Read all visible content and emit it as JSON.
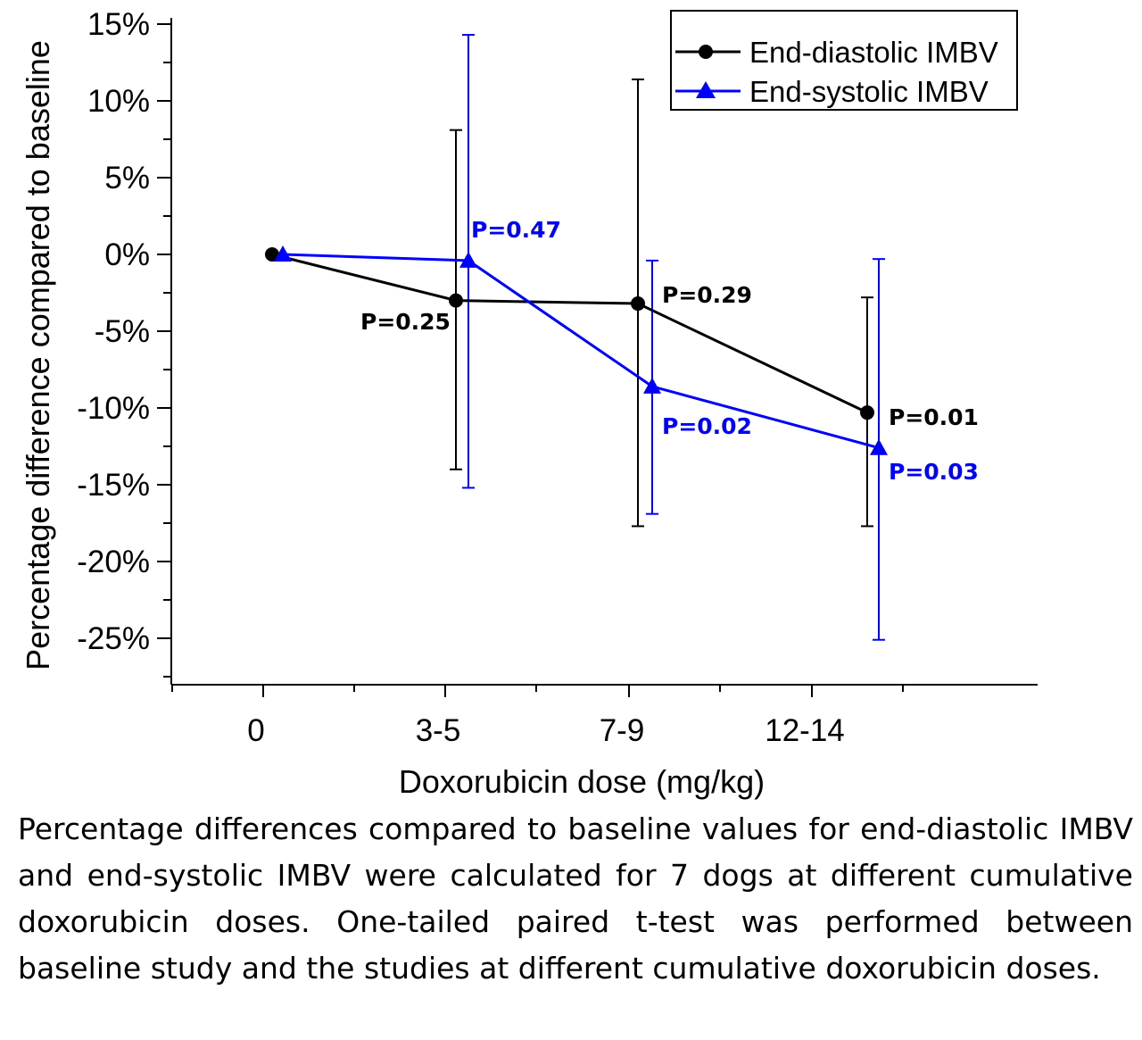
{
  "chart_data": {
    "type": "line",
    "title": "",
    "xlabel": "Doxorubicin dose (mg/kg)",
    "ylabel": "Percentage difference compared to baseline",
    "categories": [
      "0",
      "3-5",
      "7-9",
      "12-14"
    ],
    "ylim": [
      -28,
      15
    ],
    "yticks": [
      15,
      10,
      5,
      0,
      -5,
      -10,
      -15,
      -20,
      -25
    ],
    "ytick_labels": [
      "15%",
      "10%",
      "5%",
      "0%",
      "-5%",
      "-10%",
      "-15%",
      "-20%",
      "-25%"
    ],
    "grid": false,
    "legend_position": "top-right",
    "series": [
      {
        "name": "End-diastolic IMBV",
        "color": "#000000",
        "marker": "circle",
        "values": [
          0,
          -3.0,
          -3.2,
          -10.3
        ],
        "error_low": [
          null,
          -14.0,
          -17.7,
          -17.7
        ],
        "error_high": [
          null,
          8.1,
          11.4,
          -2.8
        ],
        "p_values": [
          "",
          "P=0.25",
          "P=0.29",
          "P=0.01"
        ]
      },
      {
        "name": "End-systolic IMBV",
        "color": "#0000ff",
        "marker": "triangle",
        "values": [
          0,
          -0.4,
          -8.6,
          -12.6
        ],
        "error_low": [
          null,
          -15.2,
          -16.9,
          -25.1
        ],
        "error_high": [
          null,
          14.3,
          -0.4,
          -0.3
        ],
        "p_values": [
          "",
          "P=0.47",
          "P=0.02",
          "P=0.03"
        ]
      }
    ]
  },
  "caption": "Percentage differences compared to baseline values for end-diastolic IMBV and end-systolic IMBV were calculated for 7 dogs at different cumulative doxorubicin doses. One-tailed paired t-test was performed between baseline study and the studies at different cumulative doxorubicin doses."
}
